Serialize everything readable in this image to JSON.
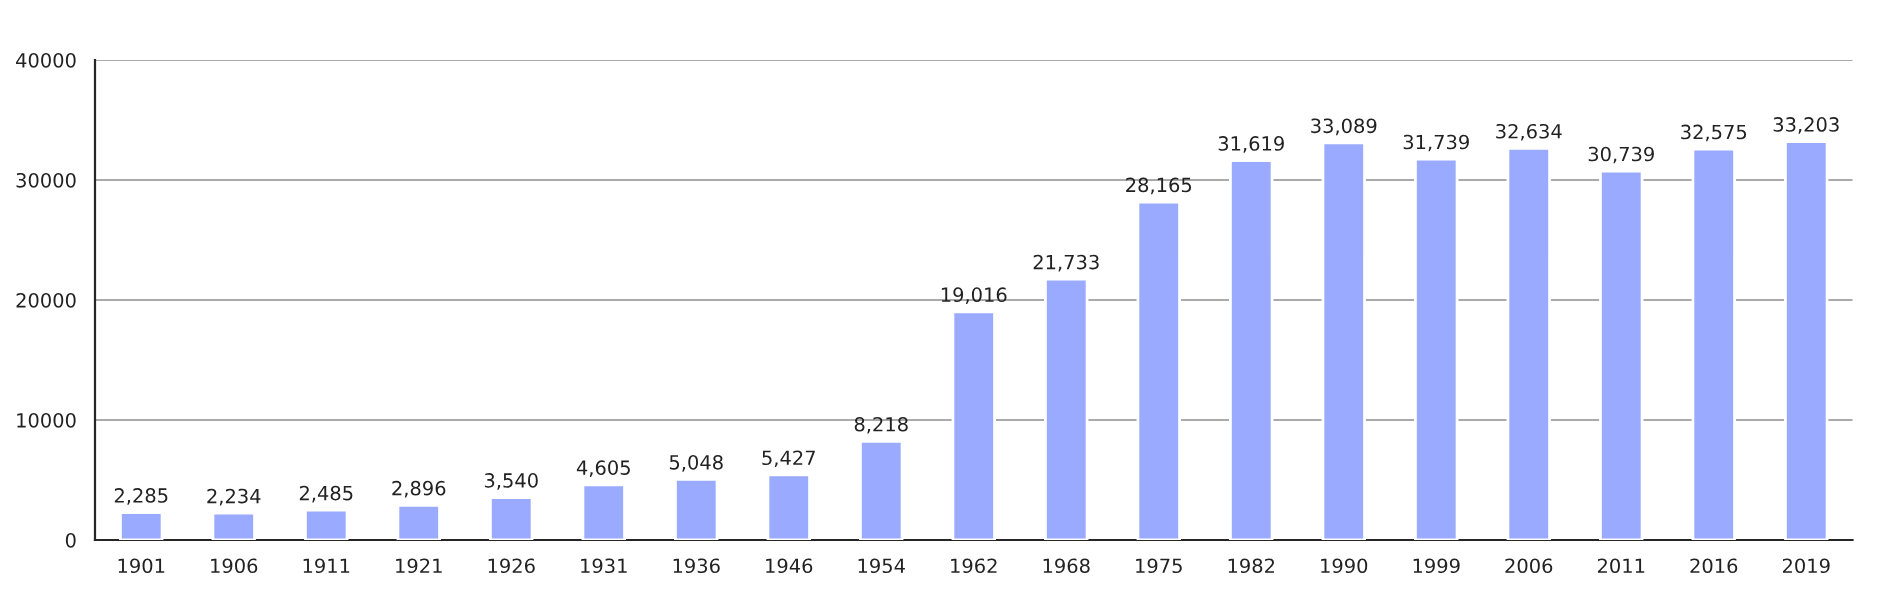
{
  "chart_data": {
    "type": "bar",
    "categories": [
      "1901",
      "1906",
      "1911",
      "1921",
      "1926",
      "1931",
      "1936",
      "1946",
      "1954",
      "1962",
      "1968",
      "1975",
      "1982",
      "1990",
      "1999",
      "2006",
      "2011",
      "2016",
      "2019"
    ],
    "values": [
      2285,
      2234,
      2485,
      2896,
      3540,
      4605,
      5048,
      5427,
      8218,
      19016,
      21733,
      28165,
      31619,
      33089,
      31739,
      32634,
      30739,
      32575,
      33203
    ],
    "value_labels": [
      "2,285",
      "2,234",
      "2,485",
      "2,896",
      "3,540",
      "4,605",
      "5,048",
      "5,427",
      "8,218",
      "19,016",
      "21,733",
      "28,165",
      "31,619",
      "33,089",
      "31,739",
      "32,634",
      "30,739",
      "32,575",
      "33,203"
    ],
    "color": "#99aaff",
    "ylim": [
      0,
      40000
    ],
    "yticks": [
      0,
      10000,
      20000,
      30000,
      40000
    ],
    "grid": "y"
  }
}
